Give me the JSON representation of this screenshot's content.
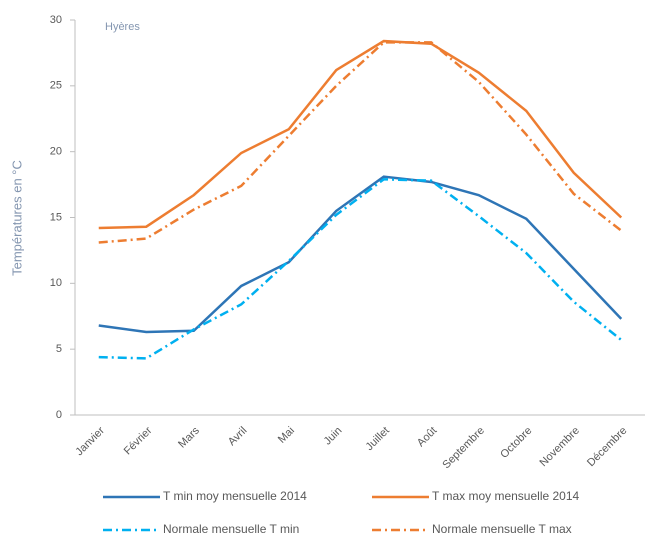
{
  "chart_data": {
    "type": "line",
    "annotation": "Hyères",
    "y_label": "Températures en °C",
    "categories": [
      "Janvier",
      "Février",
      "Mars",
      "Avril",
      "Mai",
      "Juin",
      "Juillet",
      "Août",
      "Septembre",
      "Octobre",
      "Novembre",
      "Décembre"
    ],
    "series": [
      {
        "name": "T min moy mensuelle 2014",
        "color": "#2e75b6",
        "dash": "solid",
        "values": [
          6.8,
          6.3,
          6.4,
          9.8,
          11.6,
          15.5,
          18.1,
          17.7,
          16.7,
          14.9,
          11.1,
          7.3
        ]
      },
      {
        "name": "T max moy mensuelle 2014",
        "color": "#ed7d31",
        "dash": "solid",
        "values": [
          14.2,
          14.3,
          16.7,
          19.9,
          21.7,
          26.2,
          28.4,
          28.2,
          26.0,
          23.1,
          18.4,
          15.0
        ]
      },
      {
        "name": "Normale mensuelle T min",
        "color": "#00b0f0",
        "dash": "dashdot",
        "values": [
          4.4,
          4.3,
          6.5,
          8.4,
          11.7,
          15.2,
          17.9,
          17.8,
          15.1,
          12.3,
          8.6,
          5.7
        ]
      },
      {
        "name": "Normale mensuelle T max",
        "color": "#ed7d31",
        "dash": "dashdot",
        "values": [
          13.1,
          13.4,
          15.6,
          17.4,
          21.2,
          25.0,
          28.3,
          28.3,
          25.3,
          21.3,
          16.8,
          14.0
        ]
      }
    ],
    "ylim": [
      0,
      30
    ],
    "yticks": [
      0,
      5,
      10,
      15,
      20,
      25,
      30
    ],
    "grid": false
  }
}
